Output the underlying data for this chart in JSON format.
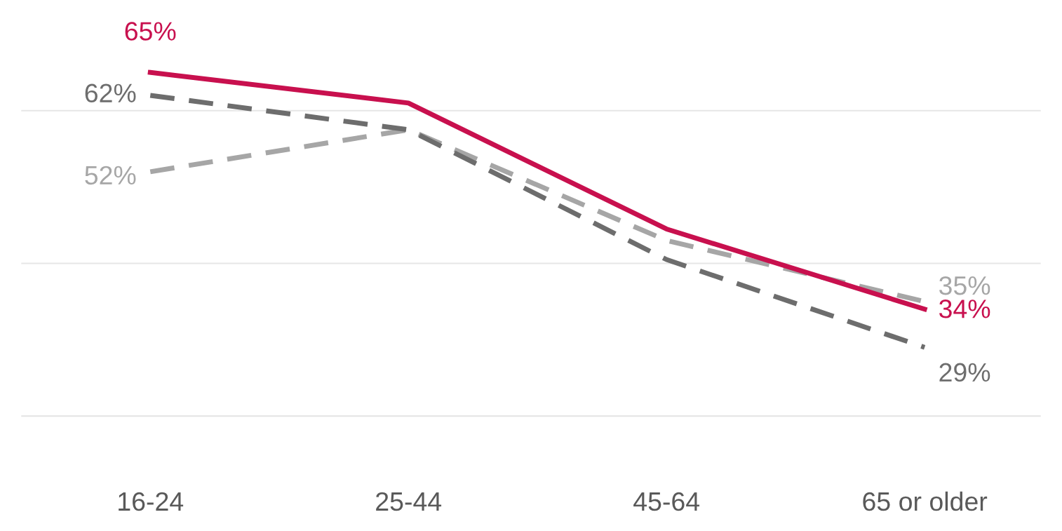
{
  "chart_data": {
    "type": "line",
    "categories": [
      "16-24",
      "25-44",
      "45-64",
      "65 or older"
    ],
    "series": [
      {
        "color": "#c8104e",
        "line_style": "solid",
        "values": [
          65,
          61,
          44.5,
          34
        ],
        "value_labels": [
          "65%",
          null,
          null,
          "34%"
        ]
      },
      {
        "color": "#6d6d6d",
        "line_style": "dashed",
        "values": [
          62,
          57.5,
          40.5,
          29
        ],
        "value_labels": [
          "62%",
          null,
          null,
          "29%"
        ]
      },
      {
        "color": "#a6a6a6",
        "line_style": "dashed",
        "values": [
          52,
          57.5,
          43,
          35
        ],
        "value_labels": [
          "52%",
          null,
          null,
          "35%"
        ]
      }
    ],
    "ref_lines": [
      {
        "axis": "y",
        "value": 20,
        "color": "#e6e6e6"
      },
      {
        "axis": "y",
        "value": 40,
        "color": "#e6e6e6"
      },
      {
        "axis": "y",
        "value": 60,
        "color": "#e6e6e6"
      }
    ],
    "tick_labels": "x",
    "marker": "none"
  }
}
